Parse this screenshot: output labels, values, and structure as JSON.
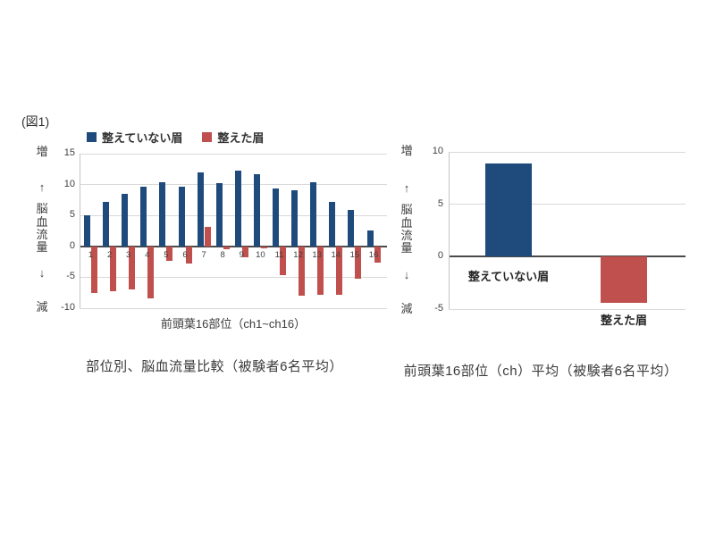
{
  "figure_label": "(図1)",
  "colors": {
    "blue": "#1f4a7c",
    "red": "#c0504d",
    "gridline": "#d9d9d9",
    "zero_line": "#4a4a4a",
    "axis_line": "#c4c4c4",
    "text": "#3f3f3f"
  },
  "chart_data": [
    {
      "type": "bar",
      "title": "部位別、脳血流量比較（被験者6名平均）",
      "x_axis_title": "前頭葉16部位（ch1~ch16）",
      "y_axis_parts": [
        "増",
        "↑",
        "脳血流量",
        "↓",
        "減"
      ],
      "categories": [
        "1",
        "2",
        "3",
        "4",
        "5",
        "6",
        "7",
        "8",
        "9",
        "10",
        "11",
        "12",
        "13",
        "14",
        "15",
        "16"
      ],
      "series": [
        {
          "name": "整えていない眉",
          "color": "#1f4a7c",
          "values": [
            5.0,
            7.2,
            8.5,
            9.7,
            10.4,
            9.6,
            12.0,
            10.3,
            12.3,
            11.7,
            9.4,
            9.1,
            10.4,
            7.2,
            5.9,
            2.6
          ]
        },
        {
          "name": "整えた眉",
          "color": "#c0504d",
          "values": [
            -7.5,
            -7.3,
            -7.0,
            -8.4,
            -2.3,
            -2.8,
            3.1,
            -0.4,
            -1.8,
            -0.3,
            -4.6,
            -8.0,
            -7.8,
            -7.8,
            -5.2,
            -2.7
          ]
        }
      ],
      "ylim": [
        -10,
        15
      ],
      "yticks": [
        15,
        10,
        5,
        0,
        -5,
        -10
      ],
      "legend_position": "top",
      "grid": true
    },
    {
      "type": "bar",
      "title": "前頭葉16部位（ch）平均（被験者6名平均）",
      "y_axis_parts": [
        "増",
        "↑",
        "脳血流量",
        "↓",
        "減"
      ],
      "categories": [
        "整えていない眉",
        "整えた眉"
      ],
      "values": [
        8.9,
        -4.4
      ],
      "bar_colors": [
        "#1f4a7c",
        "#c0504d"
      ],
      "ylim": [
        -5,
        10
      ],
      "yticks": [
        10,
        5,
        0,
        -5
      ],
      "grid": true
    }
  ]
}
